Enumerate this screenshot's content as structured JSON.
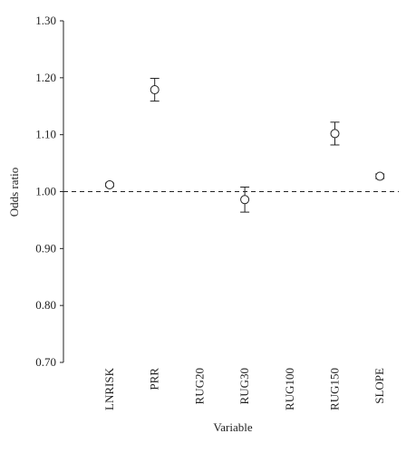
{
  "chart_data": {
    "type": "errorbar",
    "y_label": "Odds ratio",
    "x_label": "Variable",
    "categories": [
      "LNRISK",
      "PRR",
      "RUG20",
      "RUG30",
      "RUG100",
      "RUG150",
      "SLOPE"
    ],
    "values": [
      1.012,
      1.179,
      null,
      0.986,
      null,
      1.102,
      1.027
    ],
    "errors": [
      0.003,
      0.02,
      null,
      0.022,
      null,
      0.02,
      0.004
    ],
    "color": "#222222",
    "reference_line": 1.0,
    "ylim": [
      0.7,
      1.3
    ],
    "yticks": [
      {
        "value": 0.7,
        "label": "0.70"
      },
      {
        "value": 0.8,
        "label": "0.80"
      },
      {
        "value": 0.9,
        "label": "0.90"
      },
      {
        "value": 1.0,
        "label": "1.00"
      },
      {
        "value": 1.1,
        "label": "1.10"
      },
      {
        "value": 1.2,
        "label": "1.20"
      },
      {
        "value": 1.3,
        "label": "1.30"
      }
    ]
  }
}
